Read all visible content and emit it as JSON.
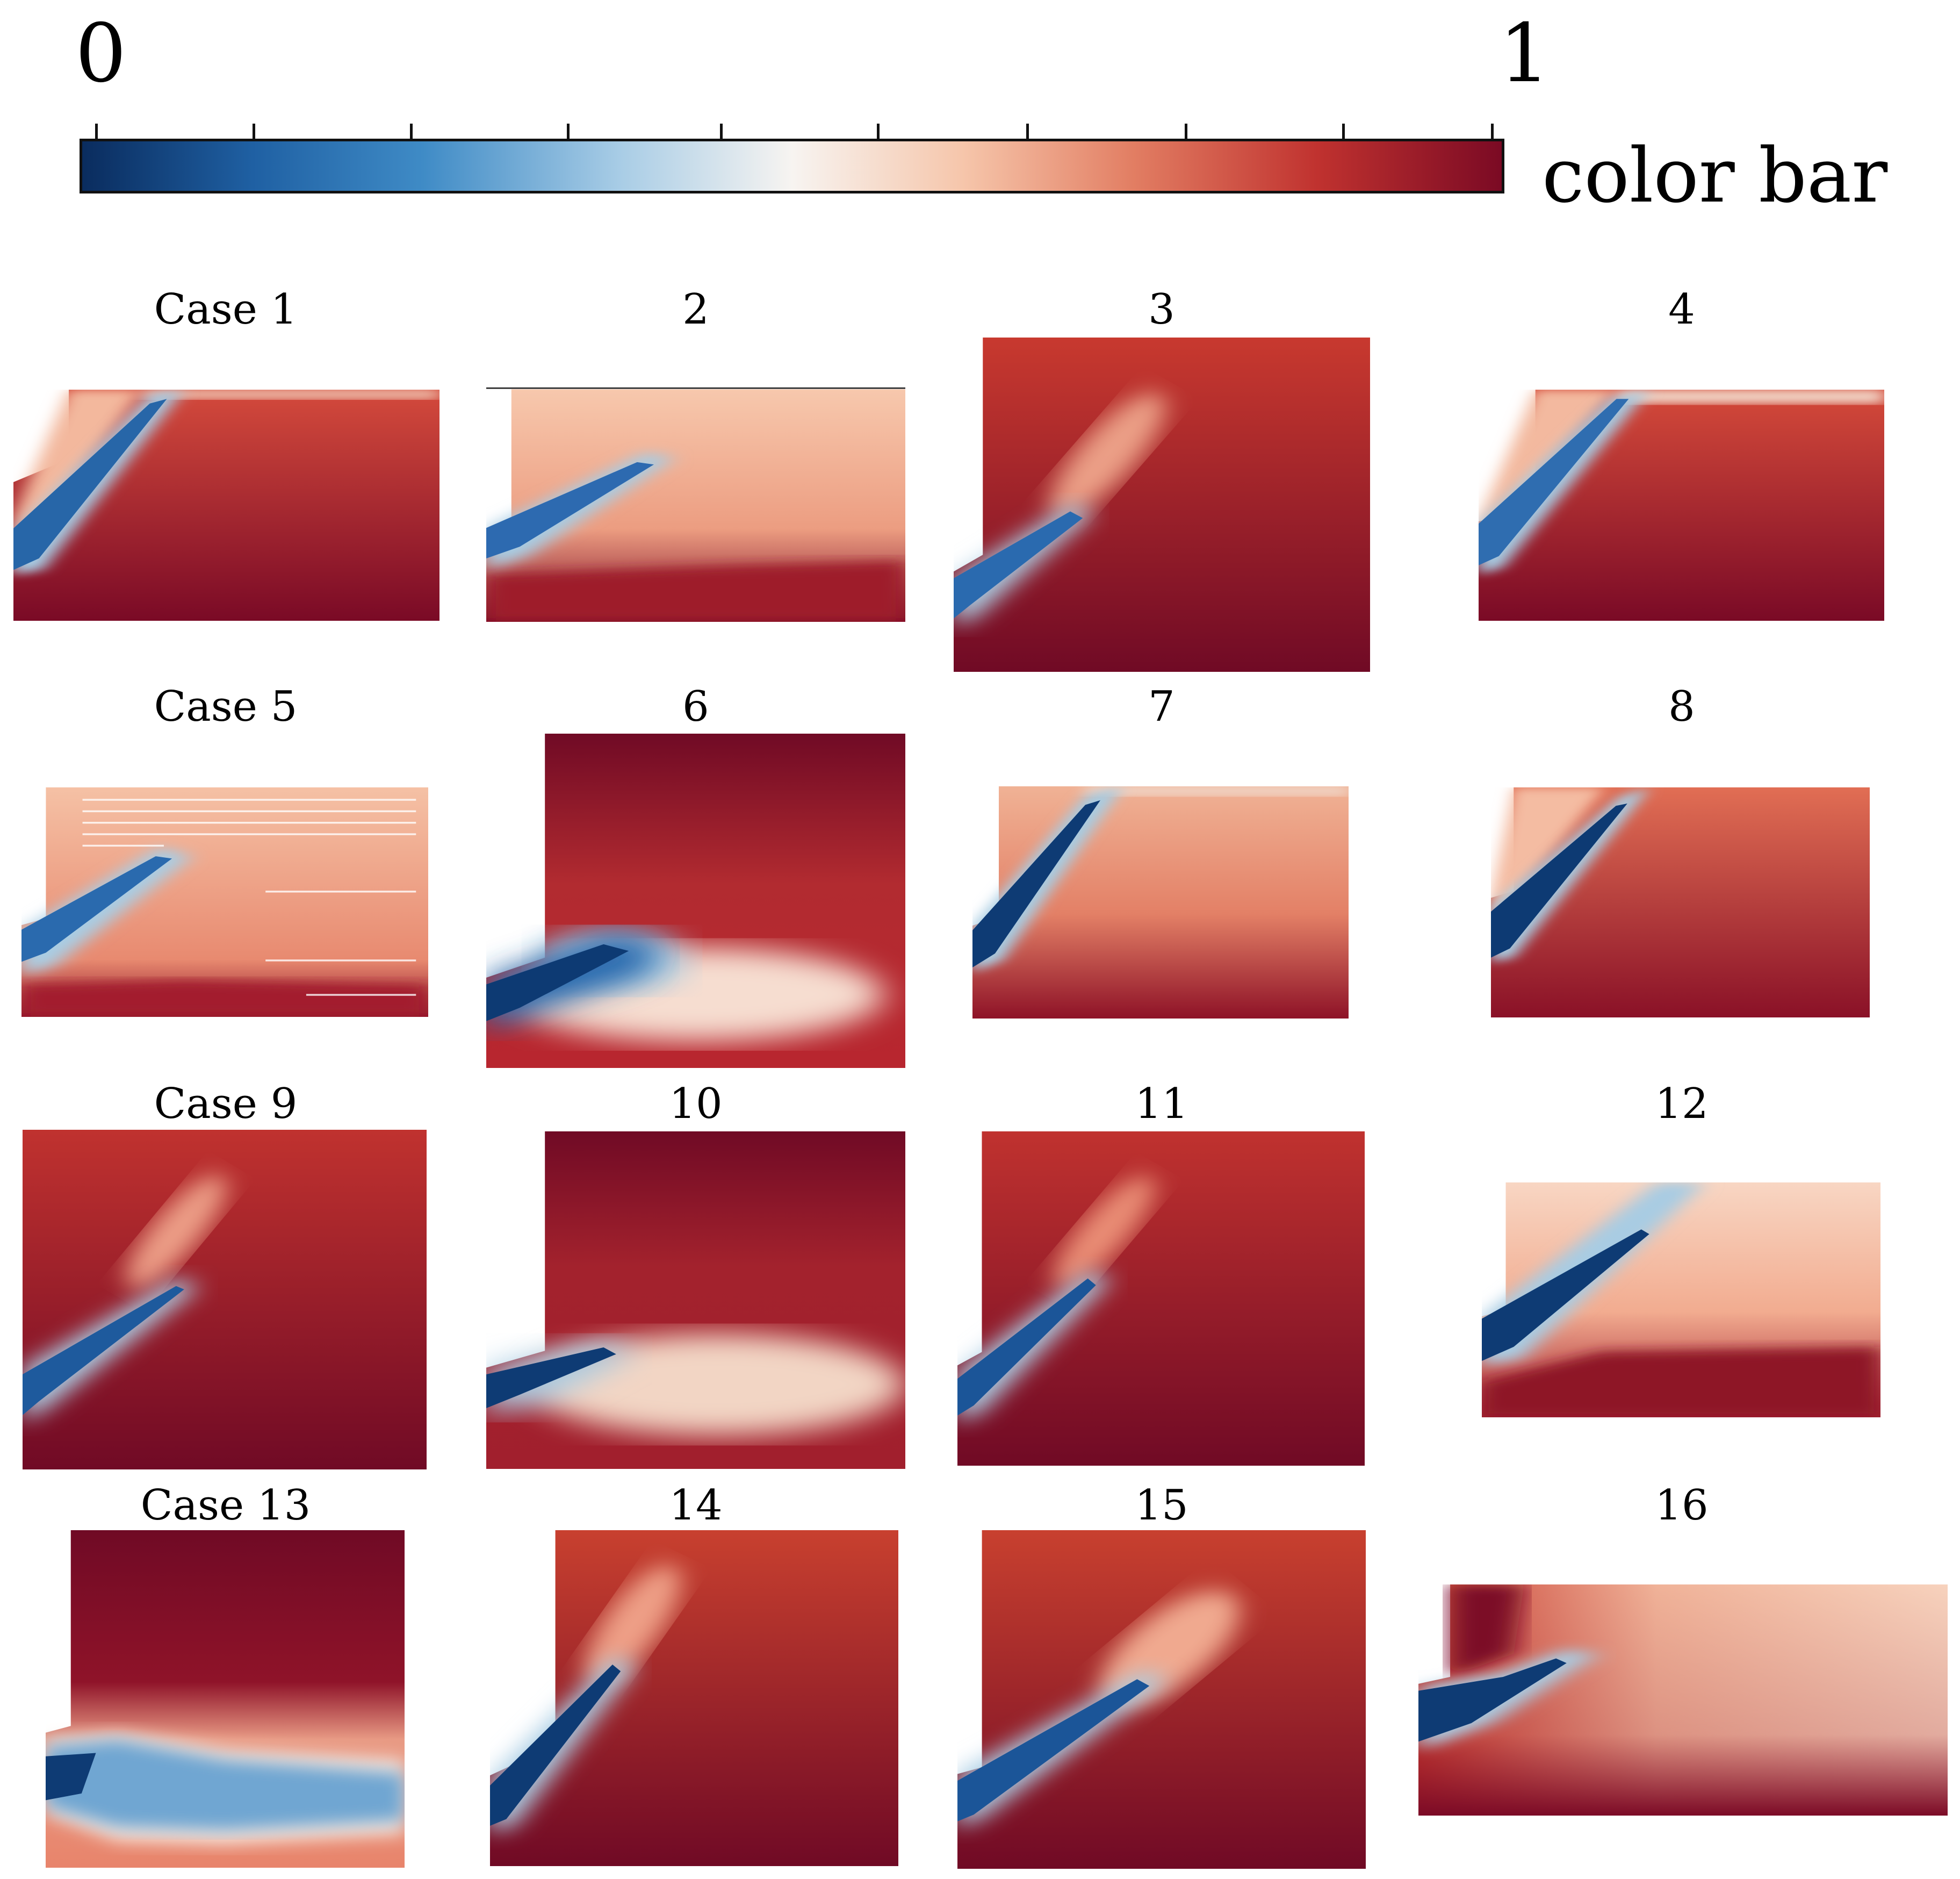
{
  "colorbar": {
    "min_label": "0",
    "max_label": "1",
    "title": "color bar",
    "stops": [
      "#0a2c5e",
      "#1f60a3",
      "#3f8bc6",
      "#a9cde6",
      "#f7f4f1",
      "#f6c6ab",
      "#e27e63",
      "#c0322f",
      "#7b0a24"
    ]
  },
  "labels": [
    "Case 1",
    "2",
    "3",
    "4",
    "Case 5",
    "6",
    "7",
    "8",
    "Case 9",
    "10",
    "11",
    "12",
    "Case 13",
    "14",
    "15",
    "16"
  ]
}
